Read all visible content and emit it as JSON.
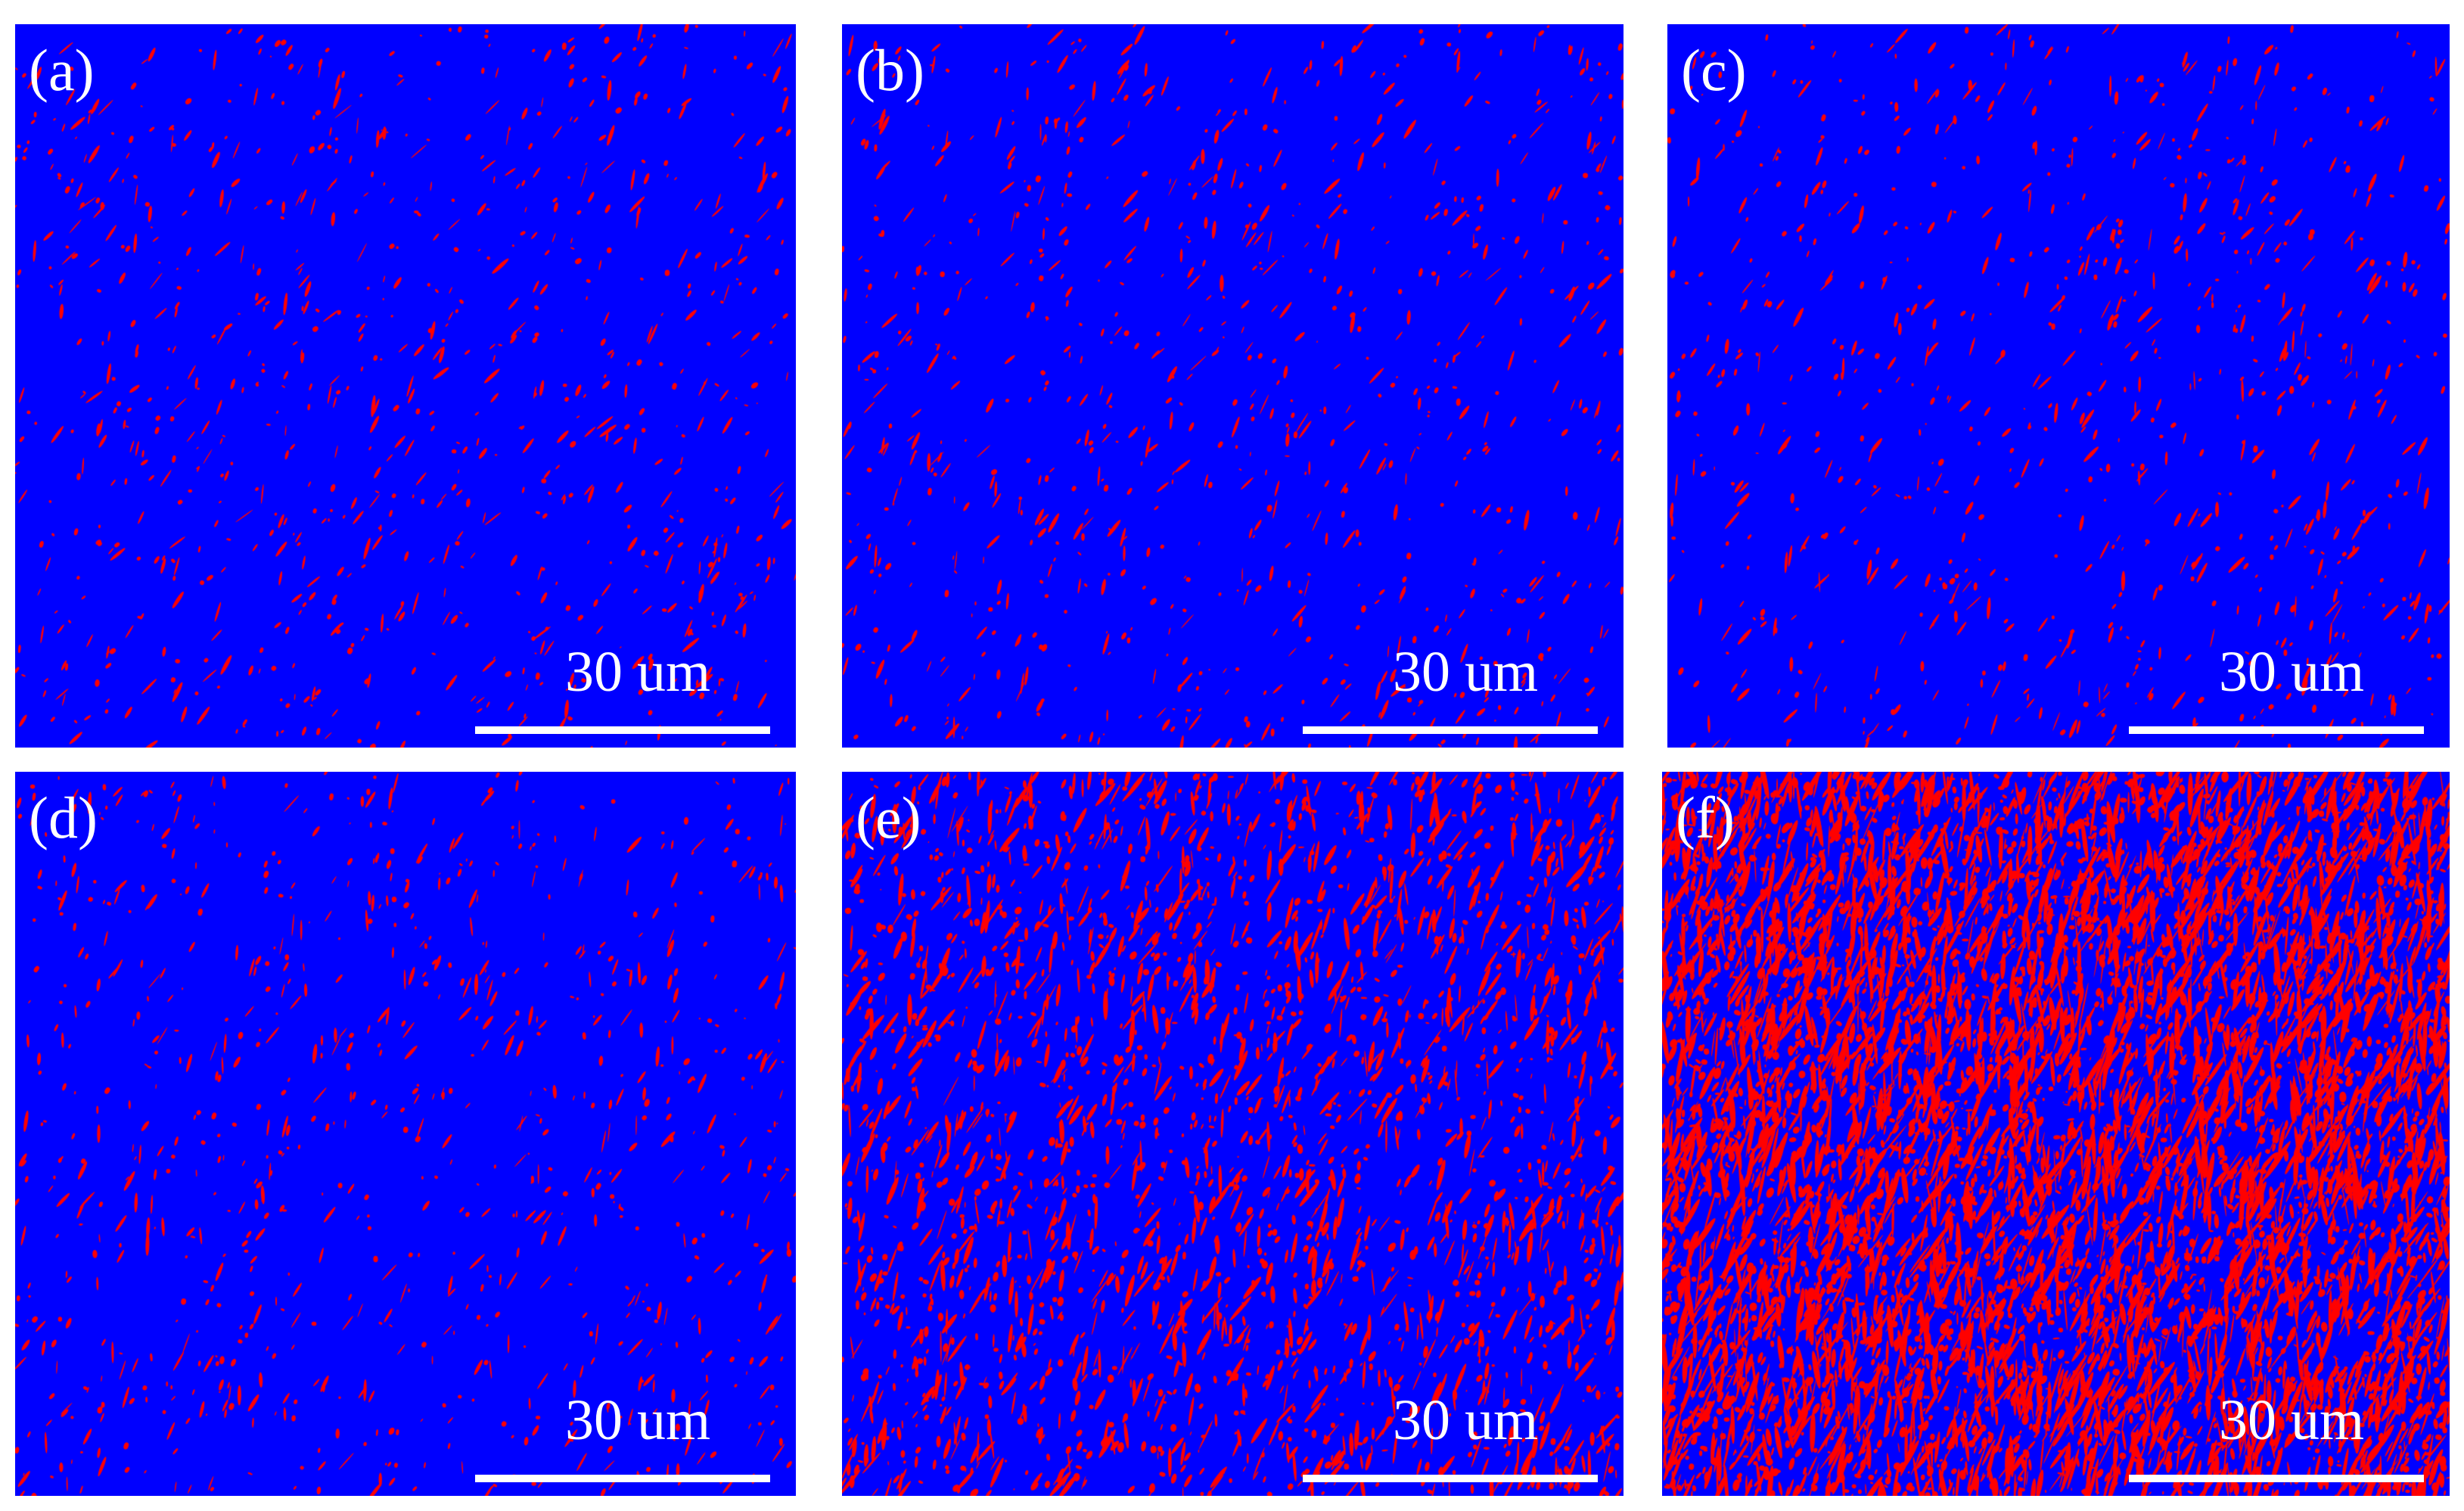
{
  "figure": {
    "background_color": "#0000ff",
    "particle_color": "#ff0000",
    "panels": [
      {
        "id": "a",
        "label": "(a)",
        "scale_bar": "30 um",
        "particle_density": "low"
      },
      {
        "id": "b",
        "label": "(b)",
        "scale_bar": "30 um",
        "particle_density": "low"
      },
      {
        "id": "c",
        "label": "(c)",
        "scale_bar": "30 um",
        "particle_density": "low"
      },
      {
        "id": "d",
        "label": "(d)",
        "scale_bar": "30 um",
        "particle_density": "low"
      },
      {
        "id": "e",
        "label": "(e)",
        "scale_bar": "30 um",
        "particle_density": "medium"
      },
      {
        "id": "f",
        "label": "(f)",
        "scale_bar": "30 um",
        "particle_density": "high"
      }
    ]
  }
}
